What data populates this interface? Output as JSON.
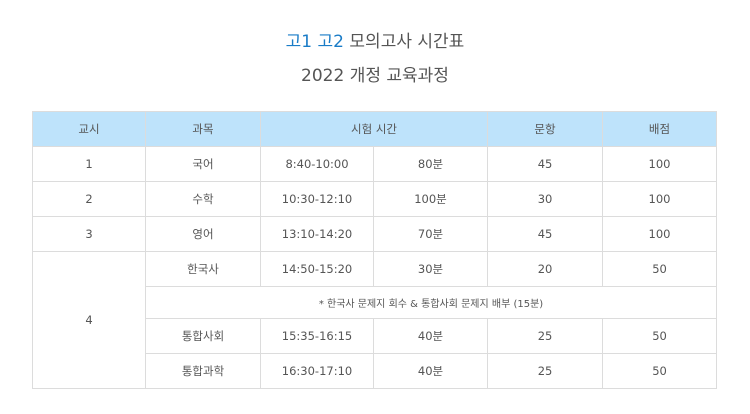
{
  "title": {
    "grade1": "고1",
    "grade2": "고2",
    "rest": "모의고사 시간표",
    "subtitle": "2022 개정 교육과정"
  },
  "colors": {
    "accent": "#1a7cc7",
    "header_bg": "#bee3fb"
  },
  "table": {
    "headers": {
      "period": "교시",
      "subject": "과목",
      "time": "시험 시간",
      "questions": "문항",
      "points": "배점"
    },
    "rows": [
      {
        "period": "1",
        "subject": "국어",
        "time": "8:40-10:00",
        "duration": "80분",
        "questions": "45",
        "points": "100"
      },
      {
        "period": "2",
        "subject": "수학",
        "time": "10:30-12:10",
        "duration": "100분",
        "questions": "30",
        "points": "100"
      },
      {
        "period": "3",
        "subject": "영어",
        "time": "13:10-14:20",
        "duration": "70분",
        "questions": "45",
        "points": "100"
      }
    ],
    "period4": {
      "period": "4",
      "first": {
        "subject": "한국사",
        "time": "14:50-15:20",
        "duration": "30분",
        "questions": "20",
        "points": "50"
      },
      "note": "* 한국사 문제지 회수 & 통합사회 문제지 배부 (15분)",
      "rest": [
        {
          "subject": "통합사회",
          "time": "15:35-16:15",
          "duration": "40분",
          "questions": "25",
          "points": "50"
        },
        {
          "subject": "통합과학",
          "time": "16:30-17:10",
          "duration": "40분",
          "questions": "25",
          "points": "50"
        }
      ]
    }
  }
}
